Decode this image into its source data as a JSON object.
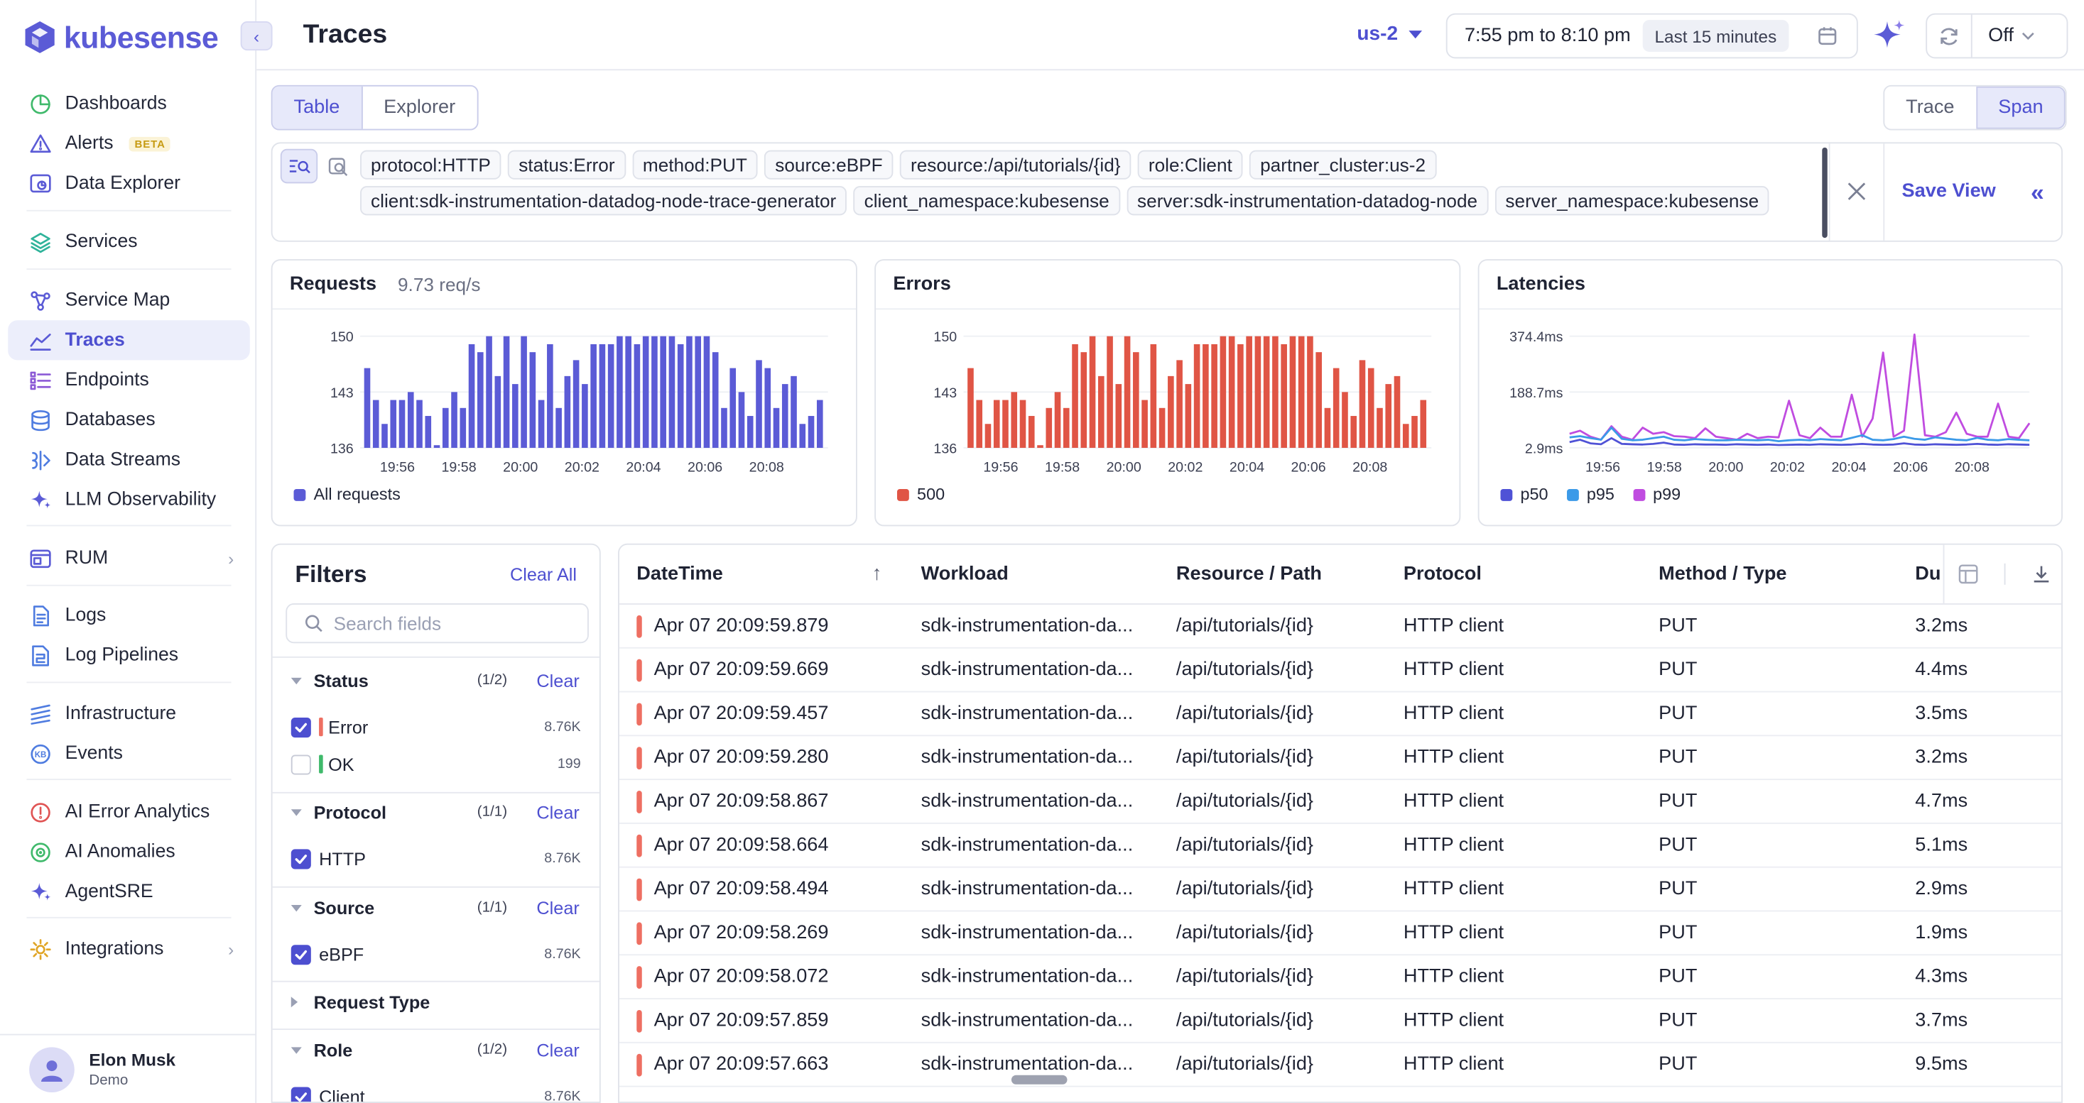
{
  "app": {
    "name": "kubesense"
  },
  "sidebar": {
    "items": [
      {
        "label": "Dashboards",
        "icon": "pie-chart-icon",
        "color": "#3fb96b"
      },
      {
        "label": "Alerts",
        "icon": "alert-triangle-icon",
        "badge": "BETA",
        "color": "#5b5bd6"
      },
      {
        "label": "Data Explorer",
        "icon": "chart-window-icon",
        "color": "#5b5bd6"
      },
      {
        "label": "Services",
        "icon": "layers-icon",
        "color": "#2fb39a"
      },
      {
        "label": "Service Map",
        "icon": "graph-nodes-icon",
        "color": "#5b5bd6"
      },
      {
        "label": "Traces",
        "icon": "traces-line-icon",
        "active": true,
        "color": "#5b5bd6"
      },
      {
        "label": "Endpoints",
        "icon": "list-icon",
        "color": "#8c5ad6"
      },
      {
        "label": "Databases",
        "icon": "database-icon",
        "color": "#4f7ce0"
      },
      {
        "label": "Data Streams",
        "icon": "streams-icon",
        "color": "#4f7ce0"
      },
      {
        "label": "LLM Observability",
        "icon": "sparkle-icon",
        "color": "#5b5bd6"
      },
      {
        "label": "RUM",
        "icon": "browser-window-icon",
        "color": "#5b5bd6",
        "arrow": true
      },
      {
        "label": "Logs",
        "icon": "document-icon",
        "color": "#4f7ce0"
      },
      {
        "label": "Log Pipelines",
        "icon": "pipeline-doc-icon",
        "color": "#4f7ce0"
      },
      {
        "label": "Infrastructure",
        "icon": "stack-lines-icon",
        "color": "#4f7ce0"
      },
      {
        "label": "Events",
        "icon": "events-icon",
        "color": "#4f7ce0"
      },
      {
        "label": "AI Error Analytics",
        "icon": "error-circle-icon",
        "color": "#e05454"
      },
      {
        "label": "AI Anomalies",
        "icon": "anomaly-icon",
        "color": "#3fb96b"
      },
      {
        "label": "AgentSRE",
        "icon": "agent-sparkle-icon",
        "color": "#5b5bd6"
      },
      {
        "label": "Integrations",
        "icon": "integrations-icon",
        "color": "#e0a526",
        "arrow": true
      }
    ]
  },
  "user": {
    "name": "Elon Musk",
    "role": "Demo"
  },
  "header": {
    "title": "Traces",
    "region": "us-2",
    "time_range": "7:55 pm to 8:10 pm",
    "quick_range": "Last 15 minutes",
    "refresh": "Off"
  },
  "view_toggle": {
    "table": "Table",
    "explorer": "Explorer"
  },
  "mode_toggle": {
    "trace": "Trace",
    "span": "Span"
  },
  "query": {
    "chips": [
      "protocol:HTTP",
      "status:Error",
      "method:PUT",
      "source:eBPF",
      "resource:/api/tutorials/{id}",
      "role:Client",
      "partner_cluster:us-2",
      "client:sdk-instrumentation-datadog-node-trace-generator",
      "client_namespace:kubesense",
      "server:sdk-instrumentation-datadog-node",
      "server_namespace:kubesense"
    ],
    "save_view": "Save View"
  },
  "colors": {
    "accent": "#4d4fd0",
    "requests": "#5b5bd6",
    "errors": "#e05545",
    "p50": "#4f52d6",
    "p95": "#3b9ae8",
    "p99": "#c04ce0"
  },
  "chart_data": [
    {
      "type": "bar",
      "title": "Requests",
      "subtitle": "9.73 req/s",
      "ylim": [
        136,
        150
      ],
      "yticks": [
        "150",
        "143",
        "136"
      ],
      "xticks": [
        "19:56",
        "19:58",
        "20:00",
        "20:02",
        "20:04",
        "20:06",
        "20:08"
      ],
      "series": [
        {
          "name": "All requests",
          "values": [
            146,
            142,
            139,
            142,
            142,
            143,
            142,
            140,
            136,
            141,
            143,
            141,
            149,
            148,
            150,
            145,
            150,
            144,
            150,
            148,
            142,
            149,
            141,
            145,
            147,
            144,
            149,
            149,
            149,
            150,
            150,
            149,
            150,
            150,
            150,
            150,
            149,
            150,
            150,
            150,
            148,
            141,
            146,
            143,
            140,
            147,
            146,
            141,
            144,
            145,
            139,
            140,
            142
          ]
        }
      ]
    },
    {
      "type": "bar",
      "title": "Errors",
      "ylim": [
        136,
        150
      ],
      "yticks": [
        "150",
        "143",
        "136"
      ],
      "xticks": [
        "19:56",
        "19:58",
        "20:00",
        "20:02",
        "20:04",
        "20:06",
        "20:08"
      ],
      "series": [
        {
          "name": "500",
          "values": [
            146,
            142,
            139,
            142,
            142,
            143,
            142,
            140,
            136,
            141,
            143,
            141,
            149,
            148,
            150,
            145,
            150,
            144,
            150,
            148,
            142,
            149,
            141,
            145,
            147,
            144,
            149,
            149,
            149,
            150,
            150,
            149,
            150,
            150,
            150,
            150,
            149,
            150,
            150,
            150,
            148,
            141,
            146,
            143,
            140,
            147,
            146,
            141,
            144,
            145,
            139,
            140,
            142
          ]
        }
      ]
    },
    {
      "type": "line",
      "title": "Latencies",
      "ylim": [
        2.9,
        374.4
      ],
      "yticks": [
        "374.4ms",
        "188.7ms",
        "2.9ms"
      ],
      "xticks": [
        "19:56",
        "19:58",
        "20:00",
        "20:02",
        "20:04",
        "20:06",
        "20:08"
      ],
      "series": [
        {
          "name": "p50",
          "values": [
            22,
            30,
            18,
            15,
            35,
            16,
            15,
            14,
            16,
            20,
            14,
            13,
            15,
            14,
            14,
            13,
            15,
            14,
            13,
            14,
            12,
            13,
            14,
            13,
            15,
            14,
            13,
            14,
            16,
            14,
            13,
            14,
            18,
            14,
            13,
            15,
            14,
            13,
            14,
            16,
            14,
            13,
            15,
            14,
            13
          ]
        },
        {
          "name": "p95",
          "values": [
            38,
            42,
            35,
            30,
            70,
            33,
            28,
            30,
            35,
            40,
            30,
            28,
            32,
            30,
            28,
            28,
            30,
            29,
            28,
            30,
            25,
            28,
            30,
            28,
            32,
            30,
            28,
            36,
            45,
            30,
            28,
            32,
            40,
            33,
            30,
            38,
            34,
            30,
            28,
            36,
            30,
            28,
            32,
            30,
            28
          ]
        },
        {
          "name": "p99",
          "values": [
            50,
            60,
            40,
            30,
            75,
            40,
            30,
            70,
            50,
            55,
            42,
            40,
            35,
            68,
            40,
            35,
            30,
            50,
            35,
            40,
            38,
            160,
            45,
            35,
            70,
            40,
            40,
            180,
            40,
            100,
            320,
            40,
            60,
            380,
            45,
            40,
            55,
            120,
            50,
            40,
            40,
            150,
            40,
            35,
            85
          ]
        }
      ]
    }
  ],
  "filters": {
    "title": "Filters",
    "clear_all": "Clear All",
    "search_placeholder": "Search fields",
    "clear_label": "Clear",
    "sections": [
      {
        "name": "Status",
        "count": "(1/2)",
        "options": [
          {
            "label": "Error",
            "count": "8.76K",
            "checked": true,
            "bar": "#ee6f62"
          },
          {
            "label": "OK",
            "count": "199",
            "checked": false,
            "bar": "#3fb96b"
          }
        ]
      },
      {
        "name": "Protocol",
        "count": "(1/1)",
        "options": [
          {
            "label": "HTTP",
            "count": "8.76K",
            "checked": true
          }
        ]
      },
      {
        "name": "Source",
        "count": "(1/1)",
        "options": [
          {
            "label": "eBPF",
            "count": "8.76K",
            "checked": true
          }
        ]
      },
      {
        "name": "Request Type"
      },
      {
        "name": "Role",
        "count": "(1/2)",
        "options": [
          {
            "label": "Client",
            "count": "8.76K",
            "checked": true
          }
        ]
      }
    ]
  },
  "table": {
    "columns": [
      "DateTime",
      "Workload",
      "Resource / Path",
      "Protocol",
      "Method / Type",
      "Du"
    ],
    "rows": [
      {
        "datetime": "Apr 07 20:09:59.879",
        "workload": "sdk-instrumentation-da...",
        "path": "/api/tutorials/{id}",
        "protocol": "HTTP client",
        "method": "PUT",
        "duration": "3.2ms"
      },
      {
        "datetime": "Apr 07 20:09:59.669",
        "workload": "sdk-instrumentation-da...",
        "path": "/api/tutorials/{id}",
        "protocol": "HTTP client",
        "method": "PUT",
        "duration": "4.4ms"
      },
      {
        "datetime": "Apr 07 20:09:59.457",
        "workload": "sdk-instrumentation-da...",
        "path": "/api/tutorials/{id}",
        "protocol": "HTTP client",
        "method": "PUT",
        "duration": "3.5ms"
      },
      {
        "datetime": "Apr 07 20:09:59.280",
        "workload": "sdk-instrumentation-da...",
        "path": "/api/tutorials/{id}",
        "protocol": "HTTP client",
        "method": "PUT",
        "duration": "3.2ms"
      },
      {
        "datetime": "Apr 07 20:09:58.867",
        "workload": "sdk-instrumentation-da...",
        "path": "/api/tutorials/{id}",
        "protocol": "HTTP client",
        "method": "PUT",
        "duration": "4.7ms"
      },
      {
        "datetime": "Apr 07 20:09:58.664",
        "workload": "sdk-instrumentation-da...",
        "path": "/api/tutorials/{id}",
        "protocol": "HTTP client",
        "method": "PUT",
        "duration": "5.1ms"
      },
      {
        "datetime": "Apr 07 20:09:58.494",
        "workload": "sdk-instrumentation-da...",
        "path": "/api/tutorials/{id}",
        "protocol": "HTTP client",
        "method": "PUT",
        "duration": "2.9ms"
      },
      {
        "datetime": "Apr 07 20:09:58.269",
        "workload": "sdk-instrumentation-da...",
        "path": "/api/tutorials/{id}",
        "protocol": "HTTP client",
        "method": "PUT",
        "duration": "1.9ms"
      },
      {
        "datetime": "Apr 07 20:09:58.072",
        "workload": "sdk-instrumentation-da...",
        "path": "/api/tutorials/{id}",
        "protocol": "HTTP client",
        "method": "PUT",
        "duration": "4.3ms"
      },
      {
        "datetime": "Apr 07 20:09:57.859",
        "workload": "sdk-instrumentation-da...",
        "path": "/api/tutorials/{id}",
        "protocol": "HTTP client",
        "method": "PUT",
        "duration": "3.7ms"
      },
      {
        "datetime": "Apr 07 20:09:57.663",
        "workload": "sdk-instrumentation-da...",
        "path": "/api/tutorials/{id}",
        "protocol": "HTTP client",
        "method": "PUT",
        "duration": "9.5ms"
      }
    ]
  }
}
